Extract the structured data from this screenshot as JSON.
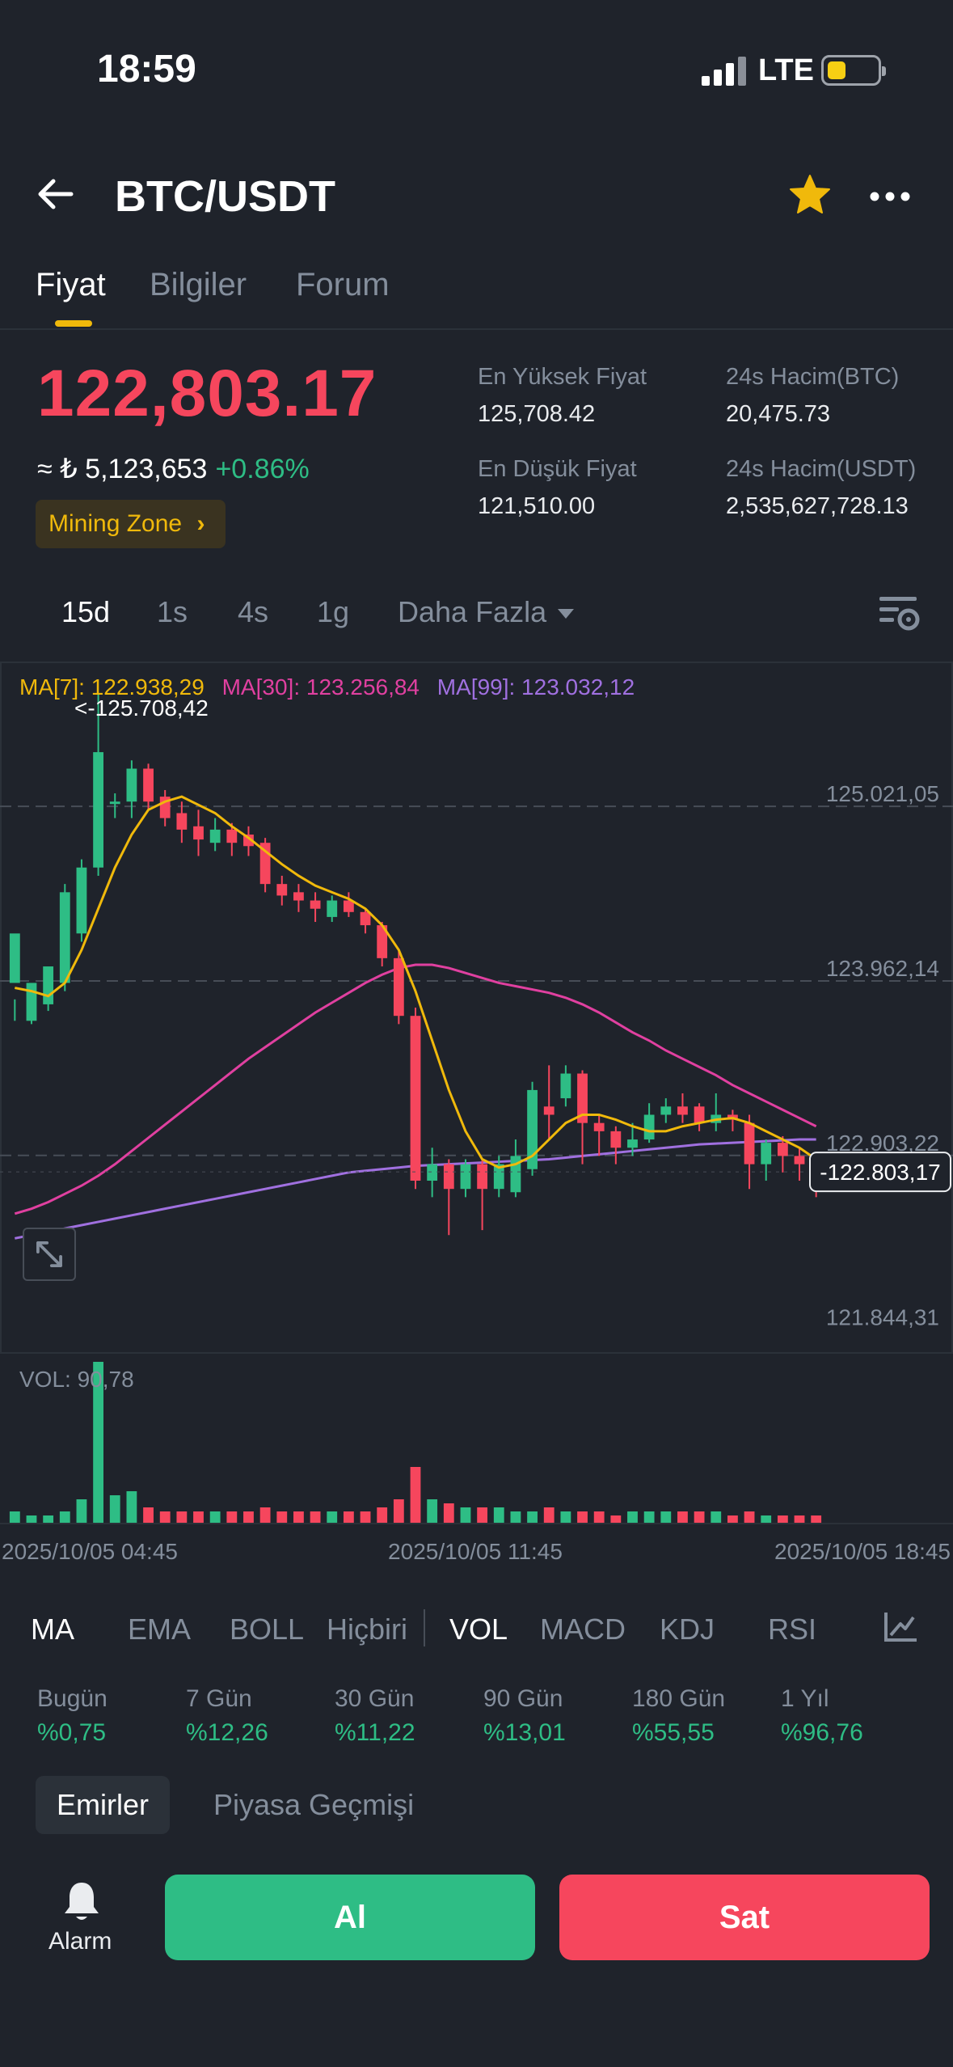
{
  "status_bar": {
    "time": "18:59",
    "network": "LTE"
  },
  "header": {
    "pair": "BTC/USDT"
  },
  "tabs": [
    {
      "label": "Fiyat"
    },
    {
      "label": "Bilgiler"
    },
    {
      "label": "Forum"
    }
  ],
  "price": {
    "last": "122,803.17",
    "approx_try": "≈ ₺ 5,123,653",
    "change": "+0.86%",
    "mining_label": "Mining Zone",
    "high_label": "En Yüksek Fiyat",
    "high_value": "125,708.42",
    "low_label": "En Düşük Fiyat",
    "low_value": "121,510.00",
    "vol_btc_label": "24s Hacim(BTC)",
    "vol_btc_value": "20,475.73",
    "vol_usdt_label": "24s Hacim(USDT)",
    "vol_usdt_value": "2,535,627,728.13"
  },
  "timeframes": {
    "items": [
      "15d",
      "1s",
      "4s",
      "1g"
    ],
    "more": "Daha Fazla"
  },
  "ma_legend": {
    "ma7": "MA[7]: 122.938,29",
    "ma30": "MA[30]: 123.256,84",
    "ma99": "MA[99]: 123.032,12"
  },
  "vol_legend": "VOL: 90,78",
  "colors": {
    "up": "#2ebd85",
    "down": "#f6465d",
    "ma7": "#f0b90b",
    "ma30": "#e040a0",
    "ma99": "#a070e0",
    "accent": "#f0b90b"
  },
  "chart_data": {
    "type": "candlestick",
    "price_axis_labels": [
      "125.021,05",
      "123.962,14",
      "122.903,22",
      "121.844,31"
    ],
    "price_axis_values": [
      125021.05,
      123962.14,
      122903.22,
      121844.31
    ],
    "high_marker": "<-125.708,42",
    "high_value": 125708.42,
    "last_price_label": "-122.803,17",
    "last_price": 122803.17,
    "time_labels": [
      "2025/10/05 04:45",
      "2025/10/05 11:45",
      "2025/10/05 18:45"
    ],
    "candles": [
      [
        123950,
        124250,
        123850,
        123720
      ],
      [
        123720,
        123950,
        123900,
        123700
      ],
      [
        123820,
        124050,
        123950,
        123780
      ],
      [
        123950,
        124500,
        124550,
        123900
      ],
      [
        124250,
        124650,
        124700,
        124200
      ],
      [
        124650,
        125350,
        125708,
        124600
      ],
      [
        125050,
        125050,
        125100,
        124950
      ],
      [
        125050,
        125250,
        125300,
        124950
      ],
      [
        125250,
        125050,
        125280,
        125000
      ],
      [
        125080,
        124950,
        125120,
        124900
      ],
      [
        124980,
        124880,
        125050,
        124800
      ],
      [
        124900,
        124820,
        125000,
        124720
      ],
      [
        124800,
        124880,
        124950,
        124750
      ],
      [
        124880,
        124800,
        124920,
        124720
      ],
      [
        124850,
        124780,
        124900,
        124720
      ],
      [
        124800,
        124550,
        124830,
        124500
      ],
      [
        124550,
        124480,
        124600,
        124420
      ],
      [
        124500,
        124450,
        124550,
        124380
      ],
      [
        124450,
        124400,
        124500,
        124320
      ],
      [
        124350,
        124450,
        124480,
        124320
      ],
      [
        124450,
        124380,
        124500,
        124350
      ],
      [
        124380,
        124300,
        124400,
        124250
      ],
      [
        124300,
        124100,
        124320,
        124050
      ],
      [
        124100,
        123750,
        124150,
        123700
      ],
      [
        123750,
        122750,
        123800,
        122700
      ],
      [
        122750,
        122850,
        122950,
        122650
      ],
      [
        122850,
        122700,
        122880,
        122420
      ],
      [
        122700,
        122850,
        122880,
        122650
      ],
      [
        122850,
        122700,
        122880,
        122450
      ],
      [
        122700,
        122850,
        122900,
        122650
      ],
      [
        122680,
        122900,
        123000,
        122650
      ],
      [
        122820,
        123300,
        123350,
        122780
      ],
      [
        123200,
        123150,
        123450,
        123000
      ],
      [
        123250,
        123400,
        123450,
        123200
      ],
      [
        123400,
        123100,
        123420,
        122850
      ],
      [
        123100,
        123050,
        123150,
        122900
      ],
      [
        123050,
        122950,
        123080,
        122850
      ],
      [
        122950,
        123000,
        123100,
        122900
      ],
      [
        123000,
        123150,
        123220,
        122980
      ],
      [
        123150,
        123200,
        123250,
        123100
      ],
      [
        123200,
        123150,
        123280,
        123100
      ],
      [
        123200,
        123100,
        123220,
        123050
      ],
      [
        123100,
        123150,
        123280,
        123050
      ],
      [
        123150,
        123120,
        123180,
        123050
      ],
      [
        123100,
        122850,
        123150,
        122700
      ],
      [
        122850,
        122980,
        123000,
        122750
      ],
      [
        122980,
        122900,
        123020,
        122800
      ],
      [
        122900,
        122850,
        122950,
        122750
      ],
      [
        122850,
        122700,
        122880,
        122650
      ]
    ],
    "volumes": [
      3,
      2,
      2,
      3,
      6,
      40,
      7,
      8,
      4,
      3,
      3,
      3,
      3,
      3,
      3,
      4,
      3,
      3,
      3,
      3,
      3,
      3,
      4,
      6,
      14,
      6,
      5,
      4,
      4,
      4,
      3,
      3,
      4,
      3,
      3,
      3,
      2,
      3,
      3,
      3,
      3,
      3,
      3,
      2,
      3,
      2,
      2,
      2,
      2
    ],
    "ma7": [
      123920,
      123900,
      123870,
      123950,
      124150,
      124400,
      124650,
      124850,
      125000,
      125050,
      125080,
      125030,
      124980,
      124900,
      124830,
      124750,
      124670,
      124600,
      124540,
      124500,
      124460,
      124400,
      124300,
      124150,
      123900,
      123600,
      123300,
      123050,
      122880,
      122830,
      122850,
      122900,
      123000,
      123100,
      123150,
      123150,
      123120,
      123080,
      123050,
      123050,
      123080,
      123100,
      123120,
      123130,
      123100,
      123050,
      123000,
      122950,
      122880
    ],
    "ma30_start_index": 0,
    "ma30": [
      122550,
      122580,
      122620,
      122670,
      122720,
      122780,
      122850,
      122930,
      123010,
      123090,
      123170,
      123250,
      123330,
      123410,
      123490,
      123560,
      123630,
      123700,
      123770,
      123830,
      123890,
      123950,
      124000,
      124040,
      124060,
      124060,
      124040,
      124010,
      123980,
      123950,
      123930,
      123910,
      123890,
      123860,
      123820,
      123770,
      123710,
      123650,
      123600,
      123540,
      123490,
      123440,
      123390,
      123330,
      123280,
      123230,
      123180,
      123130,
      123080
    ],
    "ma99": [
      122400,
      122420,
      122440,
      122460,
      122480,
      122500,
      122520,
      122540,
      122560,
      122580,
      122600,
      122620,
      122640,
      122660,
      122680,
      122700,
      122720,
      122740,
      122760,
      122780,
      122800,
      122810,
      122820,
      122830,
      122840,
      122845,
      122850,
      122855,
      122860,
      122865,
      122870,
      122875,
      122880,
      122890,
      122900,
      122910,
      122920,
      122930,
      122940,
      122950,
      122960,
      122970,
      122975,
      122980,
      122985,
      122990,
      122995,
      123000,
      123000
    ],
    "ylim": [
      121700,
      125900
    ]
  },
  "indicators": {
    "main": [
      "MA",
      "EMA",
      "BOLL",
      "Hiçbiri"
    ],
    "sub": [
      "VOL",
      "MACD",
      "KDJ",
      "RSI"
    ]
  },
  "performance": [
    {
      "label": "Bugün",
      "value": "%0,75"
    },
    {
      "label": "7 Gün",
      "value": "%12,26"
    },
    {
      "label": "30 Gün",
      "value": "%11,22"
    },
    {
      "label": "90 Gün",
      "value": "%13,01"
    },
    {
      "label": "180 Gün",
      "value": "%55,55"
    },
    {
      "label": "1 Yıl",
      "value": "%96,76"
    }
  ],
  "orders_tabs": [
    "Emirler",
    "Piyasa Geçmişi"
  ],
  "bottom": {
    "alarm": "Alarm",
    "buy": "Al",
    "sell": "Sat"
  }
}
